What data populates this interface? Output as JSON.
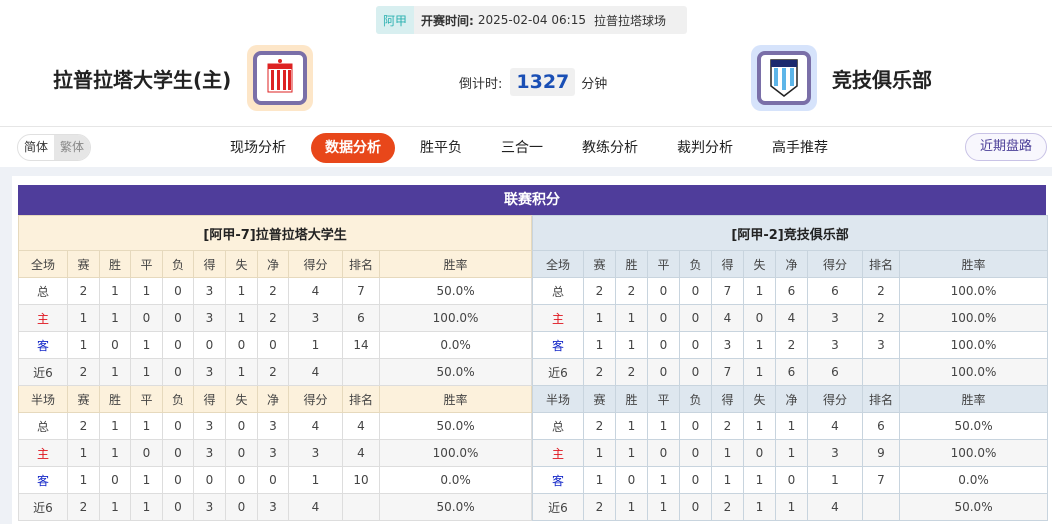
{
  "match": {
    "league": "阿甲",
    "time_label": "开赛时间:",
    "time": "2025-02-04 06:15",
    "stadium": "拉普拉塔球场"
  },
  "home": {
    "name": "拉普拉塔大学生(主)",
    "logo_text": "EdeLP"
  },
  "away": {
    "name": "竞技俱乐部",
    "logo_text": "RACING"
  },
  "countdown": {
    "label": "倒计时:",
    "value": "1327",
    "unit": "分钟"
  },
  "lang": {
    "simplified": "简体",
    "traditional": "繁体"
  },
  "tabs": [
    "现场分析",
    "数据分析",
    "胜平负",
    "三合一",
    "教练分析",
    "裁判分析",
    "高手推荐"
  ],
  "active_tab": "数据分析",
  "recent_button": "近期盘路",
  "section_title": "联赛积分",
  "columns": [
    "赛",
    "胜",
    "平",
    "负",
    "得",
    "失",
    "净",
    "得分",
    "排名",
    "胜率"
  ],
  "standings": [
    {
      "title": "[阿甲-7]拉普拉塔大学生",
      "full": {
        "label": "全场",
        "rows": [
          [
            "总",
            "2",
            "1",
            "1",
            "0",
            "3",
            "1",
            "2",
            "4",
            "7",
            "50.0%"
          ],
          [
            "主",
            "1",
            "1",
            "0",
            "0",
            "3",
            "1",
            "2",
            "3",
            "6",
            "100.0%"
          ],
          [
            "客",
            "1",
            "0",
            "1",
            "0",
            "0",
            "0",
            "0",
            "1",
            "14",
            "0.0%"
          ],
          [
            "近6",
            "2",
            "1",
            "1",
            "0",
            "3",
            "1",
            "2",
            "4",
            "",
            "50.0%"
          ]
        ]
      },
      "half": {
        "label": "半场",
        "rows": [
          [
            "总",
            "2",
            "1",
            "1",
            "0",
            "3",
            "0",
            "3",
            "4",
            "4",
            "50.0%"
          ],
          [
            "主",
            "1",
            "1",
            "0",
            "0",
            "3",
            "0",
            "3",
            "3",
            "4",
            "100.0%"
          ],
          [
            "客",
            "1",
            "0",
            "1",
            "0",
            "0",
            "0",
            "0",
            "1",
            "10",
            "0.0%"
          ],
          [
            "近6",
            "2",
            "1",
            "1",
            "0",
            "3",
            "0",
            "3",
            "4",
            "",
            "50.0%"
          ]
        ]
      }
    },
    {
      "title": "[阿甲-2]竞技俱乐部",
      "full": {
        "label": "全场",
        "rows": [
          [
            "总",
            "2",
            "2",
            "0",
            "0",
            "7",
            "1",
            "6",
            "6",
            "2",
            "100.0%"
          ],
          [
            "主",
            "1",
            "1",
            "0",
            "0",
            "4",
            "0",
            "4",
            "3",
            "2",
            "100.0%"
          ],
          [
            "客",
            "1",
            "1",
            "0",
            "0",
            "3",
            "1",
            "2",
            "3",
            "3",
            "100.0%"
          ],
          [
            "近6",
            "2",
            "2",
            "0",
            "0",
            "7",
            "1",
            "6",
            "6",
            "",
            "100.0%"
          ]
        ]
      },
      "half": {
        "label": "半场",
        "rows": [
          [
            "总",
            "2",
            "1",
            "1",
            "0",
            "2",
            "1",
            "1",
            "4",
            "6",
            "50.0%"
          ],
          [
            "主",
            "1",
            "1",
            "0",
            "0",
            "1",
            "0",
            "1",
            "3",
            "9",
            "100.0%"
          ],
          [
            "客",
            "1",
            "0",
            "1",
            "0",
            "1",
            "1",
            "0",
            "1",
            "7",
            "0.0%"
          ],
          [
            "近6",
            "2",
            "1",
            "1",
            "0",
            "2",
            "1",
            "1",
            "4",
            "",
            "50.0%"
          ]
        ]
      }
    }
  ],
  "colors": {
    "header": "#4f3d9b",
    "active_tab": "#e8471a",
    "home_label": "#e0141e",
    "away_label": "#1428c8"
  }
}
